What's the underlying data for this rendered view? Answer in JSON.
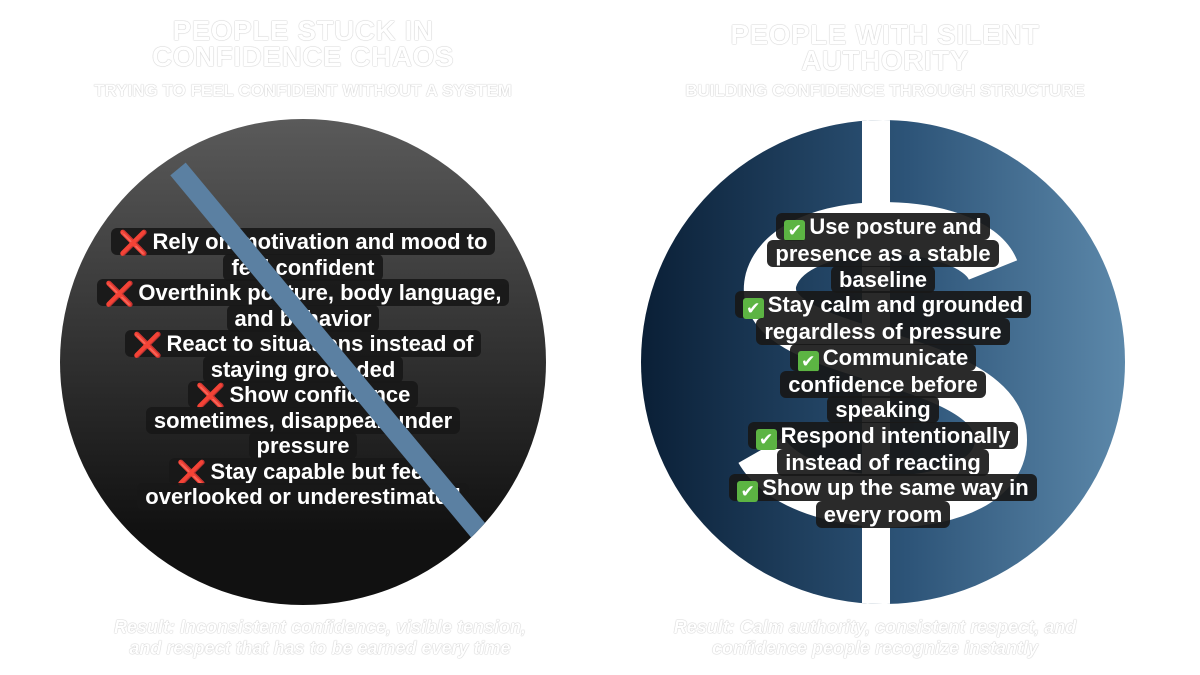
{
  "left": {
    "title_line1": "PEOPLE STUCK IN",
    "title_line2": "CONFIDENCE CHAOS",
    "subtitle": "TRYING TO FEEL CONFIDENT WITHOUT A SYSTEM",
    "icon": "cross-mark-icon",
    "items": [
      "Rely on motivation and mood to feel confident",
      "Overthink posture, body language, and behavior",
      "React to situations instead of staying grounded",
      "Show confidence sometimes, disappear under pressure",
      "Stay capable but feel overlooked or underestimated"
    ],
    "result_line1": "Result: Inconsistent confidence, visible tension,",
    "result_line2": "and respect that has to be earned every time",
    "colors": {
      "strike": "#5b80a2",
      "circle_top": "#5a5a5a",
      "circle_bottom": "#111111"
    }
  },
  "right": {
    "title_line1": "PEOPLE WITH SILENT",
    "title_line2": "AUTHORITY",
    "subtitle": "BUILDING CONFIDENCE THROUGH STRUCTURE",
    "icon": "check-mark-icon",
    "background_icon": "dollar-sign-icon",
    "items": [
      "Use posture and presence as a stable baseline",
      "Stay calm and grounded regardless of pressure",
      "Communicate confidence before speaking",
      "Respond intentionally instead of reacting",
      "Show up the same way in every room"
    ],
    "result_line1": "Result: Calm authority, consistent respect, and",
    "result_line2": "confidence people recognize instantly",
    "colors": {
      "check": "#5cb443",
      "circle_left": "#0a1f36",
      "circle_right": "#5c88aa"
    }
  }
}
